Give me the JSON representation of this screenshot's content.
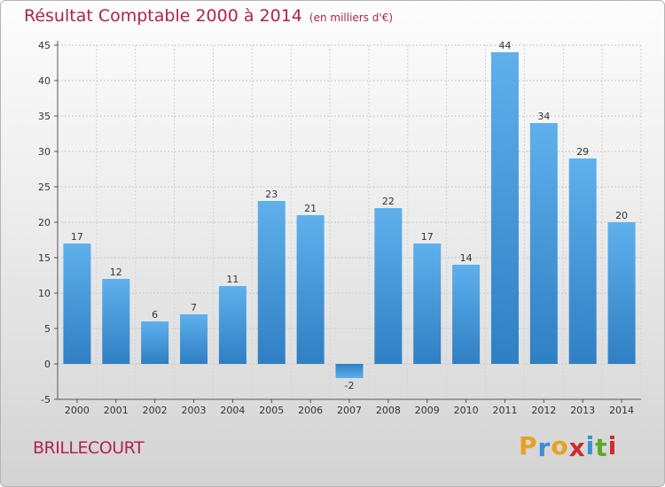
{
  "chart_data": {
    "type": "bar",
    "title": "Résultat Comptable 2000 à 2014",
    "subtitle": "(en milliers d'€)",
    "categories": [
      "2000",
      "2001",
      "2002",
      "2003",
      "2004",
      "2005",
      "2006",
      "2007",
      "2008",
      "2009",
      "2010",
      "2011",
      "2012",
      "2013",
      "2014"
    ],
    "values": [
      17,
      12,
      6,
      7,
      11,
      23,
      21,
      -2,
      22,
      17,
      14,
      44,
      34,
      29,
      20
    ],
    "yticks": [
      -5,
      0,
      5,
      10,
      15,
      20,
      25,
      30,
      35,
      40,
      45
    ],
    "ylim": [
      -5,
      45
    ],
    "grid": true,
    "bar_color": "#4a9ee0"
  },
  "footer": {
    "town": "BRILLECOURT",
    "logo_letters": [
      "P",
      "r",
      "o",
      "x",
      "i",
      "t",
      "i"
    ],
    "logo_colors": [
      "#e8a020",
      "#3a8ed8",
      "#e8a020",
      "#d02a2a",
      "#3a8ed8",
      "#5aaa2a",
      "#d02a2a"
    ]
  }
}
